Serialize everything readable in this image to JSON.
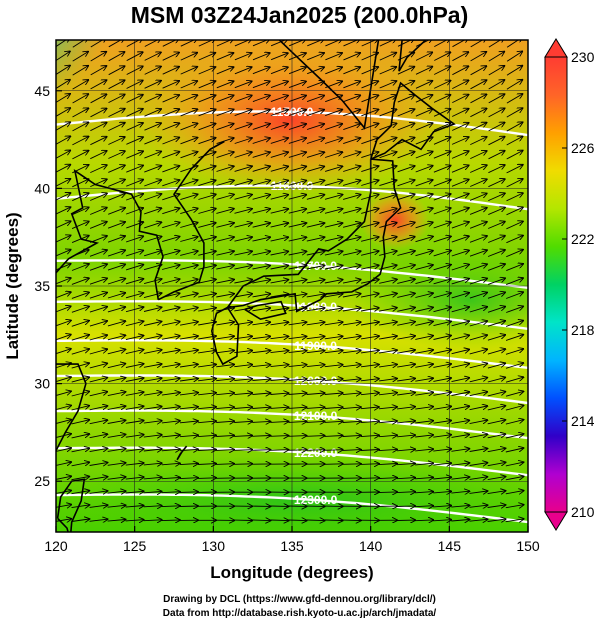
{
  "title": "MSM 03Z24Jan2025 (200.0hPa)",
  "map": {
    "lon_range": [
      120,
      150
    ],
    "lat_range": [
      22.4,
      47.6
    ],
    "x_ticks": [
      "120",
      "125",
      "130",
      "135",
      "140",
      "145",
      "150"
    ],
    "y_ticks": [
      "25",
      "30",
      "35",
      "40",
      "45"
    ],
    "xlabel": "Longitude (degrees)",
    "ylabel": "Latitude  (degrees)"
  },
  "colorbar": {
    "min": 210,
    "max": 230,
    "tick_labels": [
      "230",
      "226",
      "222",
      "218",
      "214",
      "210"
    ],
    "colors": [
      "#e8008c",
      "#b000d0",
      "#3000c8",
      "#0050ff",
      "#00b4ff",
      "#00e4c8",
      "#00d264",
      "#50dc00",
      "#b4e600",
      "#f0dc00",
      "#ffa000",
      "#ff6428",
      "#ff3c32"
    ]
  },
  "contours": [
    {
      "label": "11500.0",
      "lat": 43.0
    },
    {
      "label": "11600.0",
      "lat": 39.2
    },
    {
      "label": "11700.0",
      "lat": 35.6
    },
    {
      "label": "11800.0",
      "lat": 33.5
    },
    {
      "label": "11900.0",
      "lat": 31.5
    },
    {
      "label": "12000.0",
      "lat": 29.7
    },
    {
      "label": "12100.0",
      "lat": 27.9
    },
    {
      "label": "12200.0",
      "lat": 26.0
    },
    {
      "label": "12300.0",
      "lat": 23.6
    }
  ],
  "credits": {
    "line1": "Drawing by DCL (https://www.gfd-dennou.org/library/dcl/)",
    "line2": "Data from http://database.rish.kyoto-u.ac.jp/arch/jmadata/"
  }
}
